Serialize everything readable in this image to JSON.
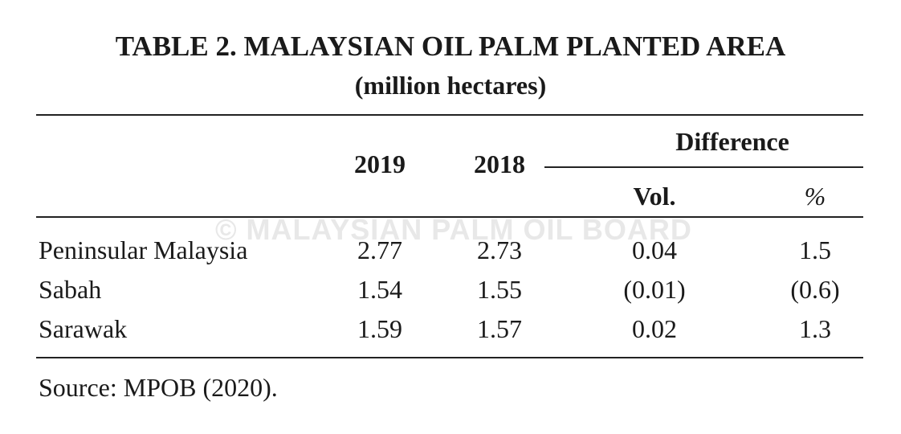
{
  "title": "TABLE 2. MALAYSIAN OIL PALM PLANTED AREA",
  "subtitle": "(million hectares)",
  "watermark": "© MALAYSIAN PALM OIL BOARD",
  "table": {
    "header": {
      "years": [
        "2019",
        "2018"
      ],
      "group": "Difference",
      "sub": [
        "Vol.",
        "%"
      ]
    },
    "rows": [
      [
        "Peninsular Malaysia",
        "2.77",
        "2.73",
        "0.04",
        "1.5"
      ],
      [
        "Sabah",
        "1.54",
        "1.55",
        "(0.01)",
        "(0.6)"
      ],
      [
        "Sarawak",
        "1.59",
        "1.57",
        "0.02",
        "1.3"
      ]
    ]
  },
  "source": "Source: MPOB (2020)."
}
